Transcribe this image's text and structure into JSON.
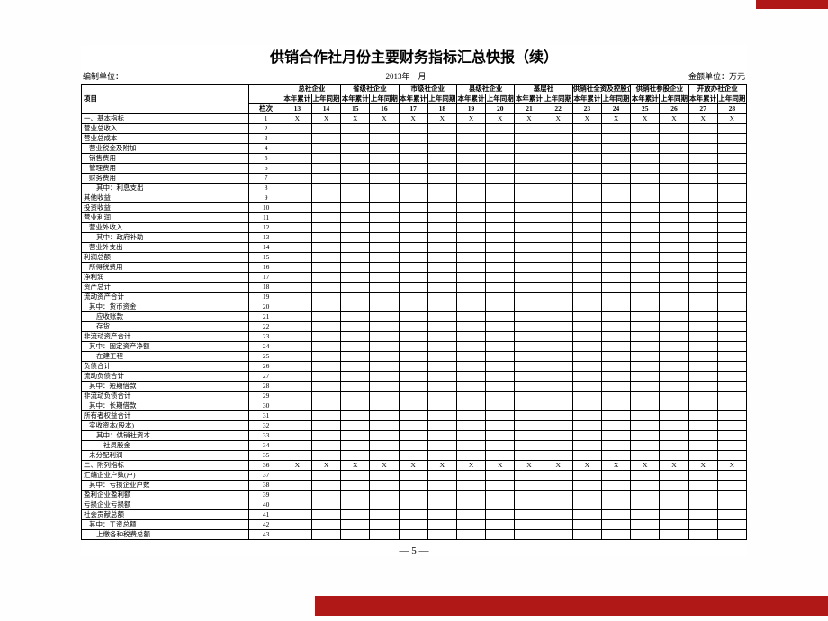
{
  "title": "供销合作社月份主要财务指标汇总快报（续）",
  "org_label": "编制单位：",
  "date_line": "2013年　月",
  "unit_label": "金额单位：万元",
  "page_num": "— 5 —",
  "row_header_item": "项目",
  "row_header_seq": "栏次",
  "blank_label": "栏次",
  "groups": [
    "总社企业",
    "省级社企业",
    "市级社企业",
    "县级社企业",
    "基层社",
    "供销社全资及控股企业",
    "供销社参股企业",
    "开放办社企业"
  ],
  "sub_cols": [
    "本年累计",
    "上年同期"
  ],
  "col_nums": [
    "13",
    "14",
    "15",
    "16",
    "17",
    "18",
    "19",
    "20",
    "21",
    "22",
    "23",
    "24",
    "25",
    "26",
    "27",
    "28"
  ],
  "x_rows": [
    1,
    36
  ],
  "rows": [
    {
      "n": "1",
      "t": "一、基本指标",
      "cls": ""
    },
    {
      "n": "2",
      "t": "营业总收入",
      "cls": ""
    },
    {
      "n": "3",
      "t": "营业总成本",
      "cls": ""
    },
    {
      "n": "4",
      "t": "营业税金及附加",
      "cls": "indent-1"
    },
    {
      "n": "5",
      "t": "销售费用",
      "cls": "indent-1"
    },
    {
      "n": "6",
      "t": "管理费用",
      "cls": "indent-1"
    },
    {
      "n": "7",
      "t": "财务费用",
      "cls": "indent-1"
    },
    {
      "n": "8",
      "t": "其中：利息支出",
      "cls": "indent-2"
    },
    {
      "n": "9",
      "t": "其他收益",
      "cls": ""
    },
    {
      "n": "10",
      "t": "投资收益",
      "cls": ""
    },
    {
      "n": "11",
      "t": "营业利润",
      "cls": ""
    },
    {
      "n": "12",
      "t": "营业外收入",
      "cls": "indent-1"
    },
    {
      "n": "13",
      "t": "其中：政府补助",
      "cls": "indent-2"
    },
    {
      "n": "14",
      "t": "营业外支出",
      "cls": "indent-1"
    },
    {
      "n": "15",
      "t": "利润总额",
      "cls": ""
    },
    {
      "n": "16",
      "t": "所得税费用",
      "cls": "indent-1"
    },
    {
      "n": "17",
      "t": "净利润",
      "cls": ""
    },
    {
      "n": "18",
      "t": "资产总计",
      "cls": ""
    },
    {
      "n": "19",
      "t": "流动资产合计",
      "cls": ""
    },
    {
      "n": "20",
      "t": "其中：货币资金",
      "cls": "indent-1"
    },
    {
      "n": "21",
      "t": "应收账款",
      "cls": "indent-2"
    },
    {
      "n": "22",
      "t": "存货",
      "cls": "indent-2"
    },
    {
      "n": "23",
      "t": "非流动资产合计",
      "cls": ""
    },
    {
      "n": "24",
      "t": "其中：固定资产净额",
      "cls": "indent-1"
    },
    {
      "n": "25",
      "t": "在建工程",
      "cls": "indent-2"
    },
    {
      "n": "26",
      "t": "负债合计",
      "cls": ""
    },
    {
      "n": "27",
      "t": "流动负债合计",
      "cls": ""
    },
    {
      "n": "28",
      "t": "其中：短期借款",
      "cls": "indent-1"
    },
    {
      "n": "29",
      "t": "非流动负债合计",
      "cls": ""
    },
    {
      "n": "30",
      "t": "其中：长期借款",
      "cls": "indent-1"
    },
    {
      "n": "31",
      "t": "所有者权益合计",
      "cls": ""
    },
    {
      "n": "32",
      "t": "实收资本(股本)",
      "cls": "indent-1"
    },
    {
      "n": "33",
      "t": "其中：供销社资本",
      "cls": "indent-2"
    },
    {
      "n": "34",
      "t": "社员股金",
      "cls": "indent-3"
    },
    {
      "n": "35",
      "t": "未分配利润",
      "cls": "indent-1"
    },
    {
      "n": "36",
      "t": "二、附列指标",
      "cls": ""
    },
    {
      "n": "37",
      "t": "汇编企业户数(户)",
      "cls": ""
    },
    {
      "n": "38",
      "t": "其中：亏损企业户数",
      "cls": "indent-1"
    },
    {
      "n": "39",
      "t": "盈利企业盈利额",
      "cls": ""
    },
    {
      "n": "40",
      "t": "亏损企业亏损额",
      "cls": ""
    },
    {
      "n": "41",
      "t": "社会贡献总额",
      "cls": ""
    },
    {
      "n": "42",
      "t": "其中：工资总额",
      "cls": "indent-1"
    },
    {
      "n": "43",
      "t": "上缴各种税费总额",
      "cls": "indent-2"
    }
  ]
}
